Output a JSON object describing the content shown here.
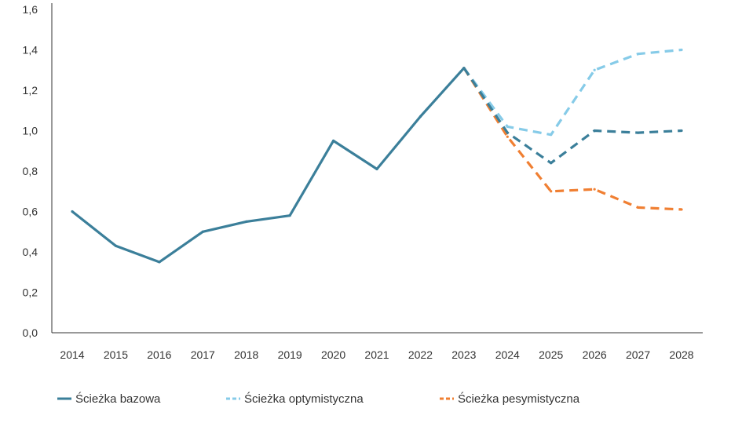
{
  "chart_data": {
    "type": "line",
    "title": "",
    "xlabel": "",
    "ylabel": "",
    "x": [
      2014,
      2015,
      2016,
      2017,
      2018,
      2019,
      2020,
      2021,
      2022,
      2023,
      2024,
      2025,
      2026,
      2027,
      2028
    ],
    "x_tick_labels": [
      "2014",
      "2015",
      "2016",
      "2017",
      "2018",
      "2019",
      "2020",
      "2021",
      "2022",
      "2023",
      "2024",
      "2025",
      "2026",
      "2027",
      "2028"
    ],
    "ylim": [
      0,
      1.6
    ],
    "y_ticks": [
      0,
      0.2,
      0.4,
      0.6,
      0.8,
      1.0,
      1.2,
      1.4,
      1.6
    ],
    "y_tick_labels": [
      "0,0",
      "0,2",
      "0,4",
      "0,6",
      "0,8",
      "1,0",
      "1,2",
      "1,4",
      "1,6"
    ],
    "grid": false,
    "legend_position": "bottom",
    "series": [
      {
        "name": "Ścieżka bazowa",
        "color": "#3b7f9a",
        "style": "solid",
        "segments": [
          {
            "x": [
              2014,
              2015,
              2016,
              2017,
              2018,
              2019,
              2020,
              2021,
              2022,
              2023
            ],
            "y": [
              0.6,
              0.43,
              0.35,
              0.5,
              0.55,
              0.58,
              0.95,
              0.81,
              1.07,
              1.31
            ],
            "style": "solid"
          },
          {
            "x": [
              2023,
              2024,
              2025,
              2026,
              2027,
              2028
            ],
            "y": [
              1.31,
              0.99,
              0.84,
              1.0,
              0.99,
              1.0
            ],
            "style": "dashed"
          }
        ]
      },
      {
        "name": "Ścieżka optymistyczna",
        "color": "#86cbe8",
        "style": "dashed",
        "segments": [
          {
            "x": [
              2023,
              2024,
              2025,
              2026,
              2027,
              2028
            ],
            "y": [
              1.31,
              1.02,
              0.98,
              1.3,
              1.38,
              1.4
            ],
            "style": "dashed"
          }
        ]
      },
      {
        "name": "Ścieżka pesymistyczna",
        "color": "#f07f32",
        "style": "dashed",
        "segments": [
          {
            "x": [
              2023,
              2024,
              2025,
              2026,
              2027,
              2028
            ],
            "y": [
              1.31,
              0.97,
              0.7,
              0.71,
              0.62,
              0.61
            ],
            "style": "dashed"
          }
        ]
      }
    ]
  }
}
